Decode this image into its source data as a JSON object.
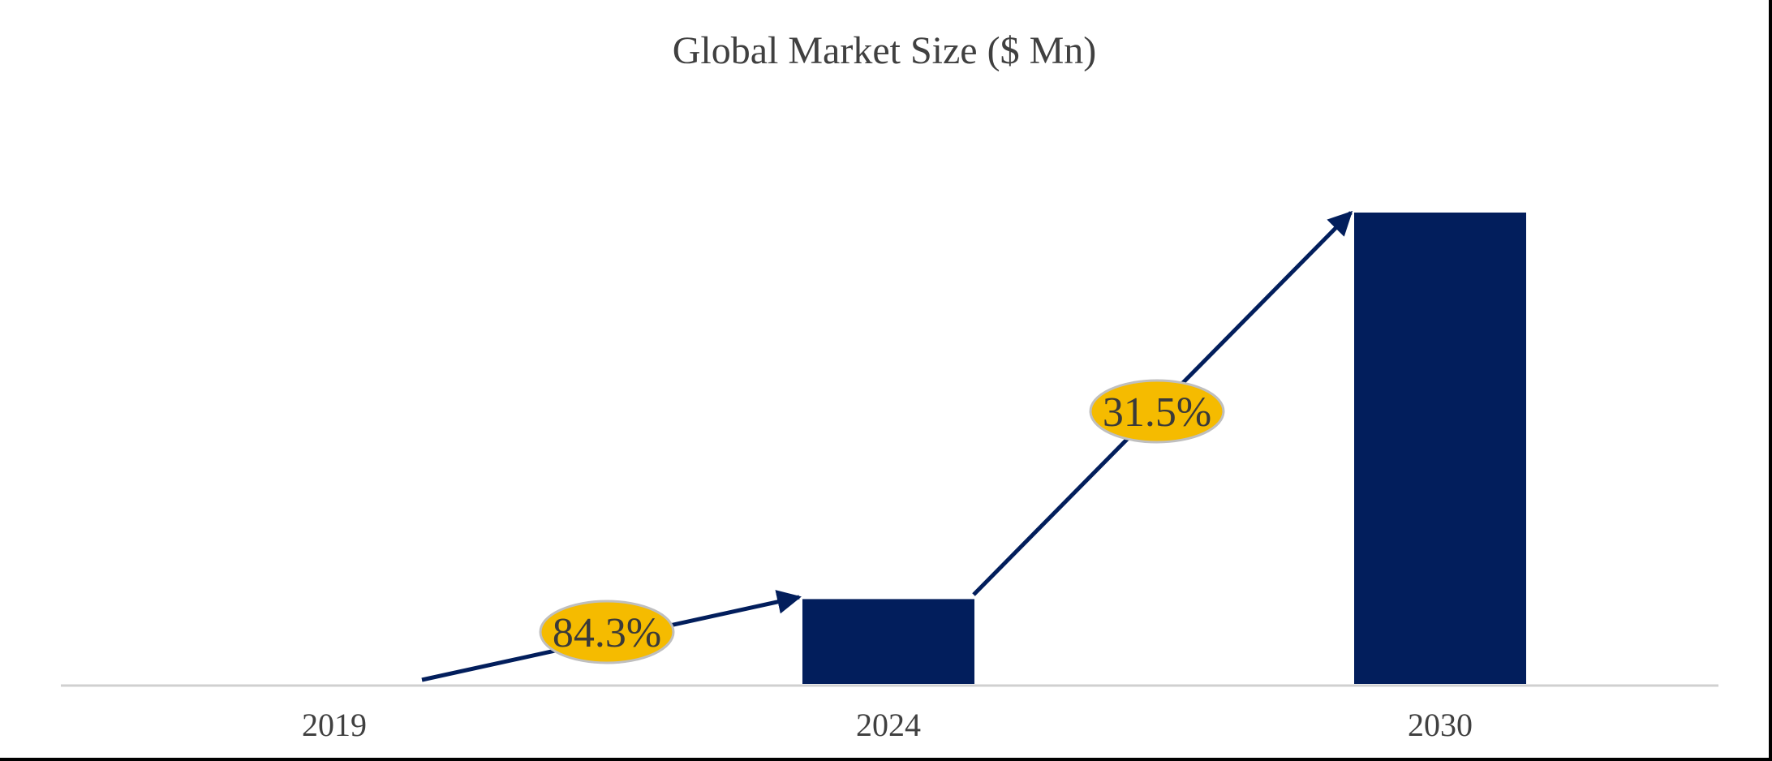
{
  "chart_data": {
    "type": "bar",
    "title": "Global Market Size ($ Mn)",
    "xlabel": "",
    "ylabel": "",
    "categories": [
      "2019",
      "2024",
      "2030"
    ],
    "values": [
      1,
      18,
      100
    ],
    "ylim": [
      0,
      100
    ],
    "grid": false,
    "legend": "none",
    "annotations": [
      {
        "label": "84.3%",
        "from": "2019",
        "to": "2024"
      },
      {
        "label": "31.5%",
        "from": "2024",
        "to": "2030"
      }
    ],
    "colors": {
      "bar": "#021e5c",
      "arrow": "#021e5c",
      "badge_fill": "#f5bb00",
      "badge_stroke": "#bfbfbf",
      "axis": "#d0d0d0",
      "text": "#404040"
    }
  }
}
